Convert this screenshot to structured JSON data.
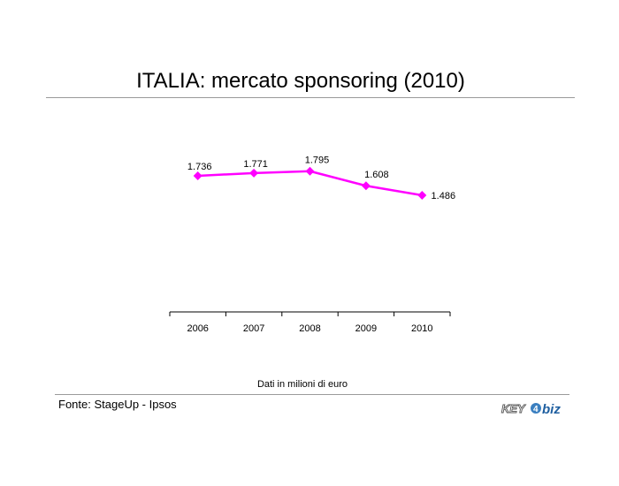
{
  "title": "ITALIA: mercato sponsoring (2010)",
  "note": "Dati in milioni di euro",
  "source": "Fonte: StageUp - Ipsos",
  "logo_text": "KEY4biz",
  "colors": {
    "line": "#ff00ff",
    "axis": "#000000",
    "rule": "#9a9a9a"
  },
  "chart_data": {
    "type": "line",
    "categories": [
      "2006",
      "2007",
      "2008",
      "2009",
      "2010"
    ],
    "values": [
      1736,
      1771,
      1795,
      1608,
      1486
    ],
    "data_labels": [
      "1.736",
      "1.771",
      "1.795",
      "1.608",
      "1.486"
    ],
    "title": "ITALIA: mercato sponsoring (2010)",
    "xlabel": "",
    "ylabel": "",
    "grid": false,
    "marker": "diamond"
  }
}
